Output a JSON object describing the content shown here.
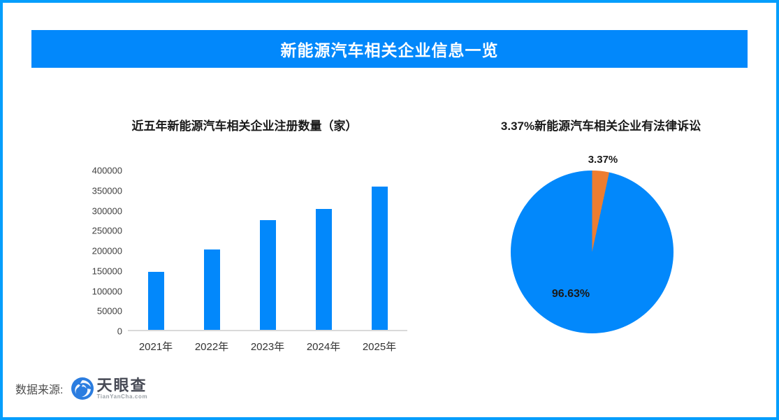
{
  "colors": {
    "frame_border": "#059efc",
    "banner_bg": "#0288fb",
    "bar_blue": "#0288fb",
    "pie_blue": "#0288fb",
    "pie_orange": "#ed7d31",
    "axis_line": "#d9d9d9"
  },
  "header": {
    "title": "新能源汽车相关企业信息一览"
  },
  "chart_data": [
    {
      "type": "bar",
      "title": "近五年新能源汽车相关企业注册数量（家）",
      "categories": [
        "2021年",
        "2022年",
        "2023年",
        "2024年",
        "2025年"
      ],
      "values": [
        145000,
        201000,
        276000,
        304000,
        359000
      ],
      "xlabel": "",
      "ylabel": "",
      "ylim": [
        0,
        400000
      ],
      "yticks": [
        0,
        50000,
        100000,
        150000,
        200000,
        250000,
        300000,
        350000,
        400000
      ],
      "grid": false,
      "legend": "none",
      "bar_color": "#0288fb"
    },
    {
      "type": "pie",
      "title": "3.37%新能源汽车相关企业有法律诉讼",
      "slices": [
        {
          "label": "3.37%",
          "value": 3.37,
          "color": "#ed7d31"
        },
        {
          "label": "96.63%",
          "value": 96.63,
          "color": "#0288fb"
        }
      ],
      "start_angle": "top",
      "direction": "clockwise",
      "legend": "none"
    }
  ],
  "footer": {
    "source_label": "数据来源:",
    "logo_name": "天眼查",
    "logo_sub": "TianYanCha.com",
    "logo_icon": "tianyancha-aperture-icon"
  }
}
